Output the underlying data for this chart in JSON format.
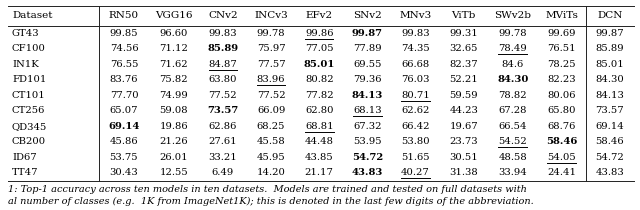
{
  "headers": [
    "Dataset",
    "RN50",
    "VGG16",
    "CNv2",
    "INCv3",
    "EFv2",
    "SNv2",
    "MNv3",
    "ViTb",
    "SWv2b",
    "MViTs",
    "DCN"
  ],
  "rows": [
    [
      "GT43",
      "99.85",
      "96.60",
      "99.83",
      "99.78",
      "99.86",
      "99.87",
      "99.83",
      "99.31",
      "99.78",
      "99.69",
      "99.87"
    ],
    [
      "CF100",
      "74.56",
      "71.12",
      "85.89",
      "75.97",
      "77.05",
      "77.89",
      "74.35",
      "32.65",
      "78.49",
      "76.51",
      "85.89"
    ],
    [
      "IN1K",
      "76.55",
      "71.62",
      "84.87",
      "77.57",
      "85.01",
      "69.55",
      "66.68",
      "82.37",
      "84.6",
      "78.25",
      "85.01"
    ],
    [
      "FD101",
      "83.76",
      "75.82",
      "63.80",
      "83.96",
      "80.82",
      "79.36",
      "76.03",
      "52.21",
      "84.30",
      "82.23",
      "84.30"
    ],
    [
      "CT101",
      "77.70",
      "74.99",
      "77.52",
      "77.52",
      "77.82",
      "84.13",
      "80.71",
      "59.59",
      "78.82",
      "80.06",
      "84.13"
    ],
    [
      "CT256",
      "65.07",
      "59.08",
      "73.57",
      "66.09",
      "62.80",
      "68.13",
      "62.62",
      "44.23",
      "67.28",
      "65.80",
      "73.57"
    ],
    [
      "QD345",
      "69.14",
      "19.86",
      "62.86",
      "68.25",
      "68.81",
      "67.32",
      "66.42",
      "19.67",
      "66.54",
      "68.76",
      "69.14"
    ],
    [
      "CB200",
      "45.86",
      "21.26",
      "27.61",
      "45.58",
      "44.48",
      "53.95",
      "53.80",
      "23.73",
      "54.52",
      "58.46",
      "58.46"
    ],
    [
      "ID67",
      "53.75",
      "26.01",
      "33.21",
      "45.95",
      "43.85",
      "54.72",
      "51.65",
      "30.51",
      "48.58",
      "54.05",
      "54.72"
    ],
    [
      "TT47",
      "30.43",
      "12.55",
      "6.49",
      "14.20",
      "21.17",
      "43.83",
      "40.27",
      "31.38",
      "33.94",
      "24.41",
      "43.83"
    ]
  ],
  "bold_cells": {
    "GT43": [
      5
    ],
    "CF100": [
      2
    ],
    "IN1K": [
      4
    ],
    "FD101": [
      8
    ],
    "CT101": [
      5
    ],
    "CT256": [
      2
    ],
    "QD345": [
      0
    ],
    "CB200": [
      9
    ],
    "ID67": [
      5
    ],
    "TT47": [
      5
    ]
  },
  "underline_cells": {
    "GT43": [
      4
    ],
    "CF100": [
      8
    ],
    "IN1K": [
      2
    ],
    "FD101": [
      3
    ],
    "CT101": [
      6
    ],
    "CT256": [
      5
    ],
    "QD345": [
      4
    ],
    "CB200": [
      8
    ],
    "ID67": [
      9
    ],
    "TT47": [
      6
    ]
  },
  "caption": "1: Top-1 accuracy across ten models in ten datasets.  Models are trained and tested on full datasets with",
  "caption2": "al number of classes (e.g.  1K from ImageNet1K); this is denoted in the last few digits of the abbreviation.",
  "figsize": [
    6.4,
    2.1
  ],
  "dpi": 100
}
